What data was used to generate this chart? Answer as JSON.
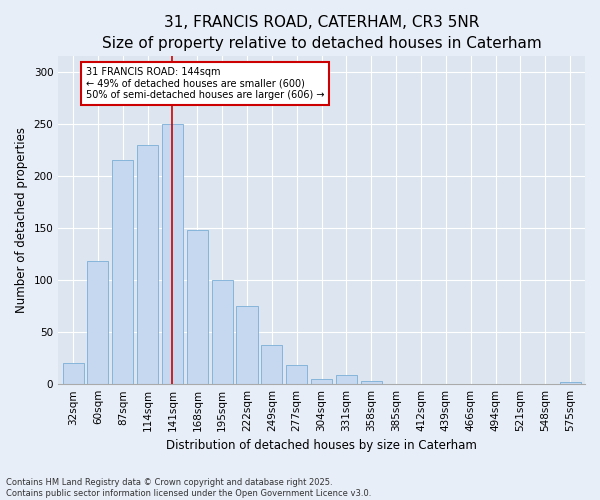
{
  "title1": "31, FRANCIS ROAD, CATERHAM, CR3 5NR",
  "title2": "Size of property relative to detached houses in Caterham",
  "xlabel": "Distribution of detached houses by size in Caterham",
  "ylabel": "Number of detached properties",
  "categories": [
    "32sqm",
    "60sqm",
    "87sqm",
    "114sqm",
    "141sqm",
    "168sqm",
    "195sqm",
    "222sqm",
    "249sqm",
    "277sqm",
    "304sqm",
    "331sqm",
    "358sqm",
    "385sqm",
    "412sqm",
    "439sqm",
    "466sqm",
    "494sqm",
    "521sqm",
    "548sqm",
    "575sqm"
  ],
  "values": [
    20,
    118,
    215,
    230,
    250,
    148,
    100,
    75,
    38,
    18,
    5,
    9,
    3,
    0,
    0,
    0,
    0,
    0,
    0,
    0,
    2
  ],
  "bar_color": "#c5d8f0",
  "bar_edge_color": "#7aaed6",
  "vline_x_index": 4,
  "vline_color": "#cc0000",
  "annotation_text": "31 FRANCIS ROAD: 144sqm\n← 49% of detached houses are smaller (600)\n50% of semi-detached houses are larger (606) →",
  "annotation_box_color": "#cc0000",
  "ylim": [
    0,
    315
  ],
  "yticks": [
    0,
    50,
    100,
    150,
    200,
    250,
    300
  ],
  "plot_bg_color": "#dde6f0",
  "fig_bg_color": "#e8eef8",
  "footer_text": "Contains HM Land Registry data © Crown copyright and database right 2025.\nContains public sector information licensed under the Open Government Licence v3.0.",
  "title1_fontsize": 11,
  "title2_fontsize": 9.5,
  "axis_label_fontsize": 8.5,
  "tick_fontsize": 7.5,
  "footer_fontsize": 6,
  "annotation_fontsize": 7
}
